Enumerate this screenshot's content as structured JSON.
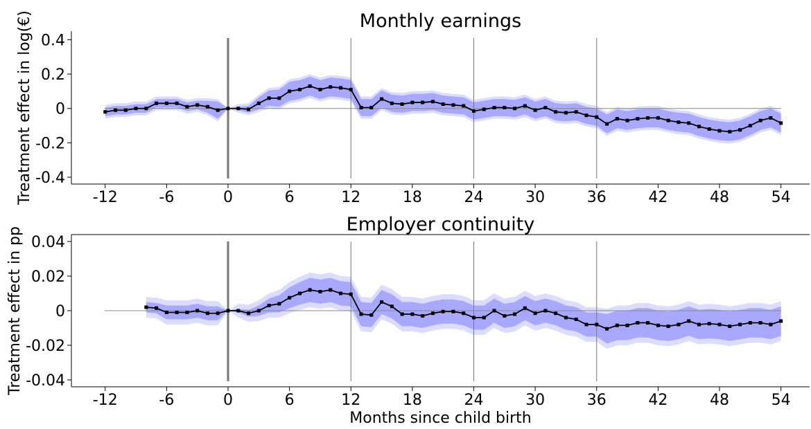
{
  "chart_data": [
    {
      "type": "line",
      "title": "Monthly earnings",
      "ylabel": "Treatment effect in log(€)",
      "x": [
        -12,
        -11,
        -10,
        -9,
        -8,
        -7,
        -6,
        -5,
        -4,
        -3,
        -2,
        -1,
        0,
        1,
        2,
        3,
        4,
        5,
        6,
        7,
        8,
        9,
        10,
        11,
        12,
        13,
        14,
        15,
        16,
        17,
        18,
        19,
        20,
        21,
        22,
        23,
        24,
        25,
        26,
        27,
        28,
        29,
        30,
        31,
        32,
        33,
        34,
        35,
        36,
        37,
        38,
        39,
        40,
        41,
        42,
        43,
        44,
        45,
        46,
        47,
        48,
        49,
        50,
        51,
        52,
        53,
        54
      ],
      "series": [
        {
          "color": "#000000",
          "band_colors": [
            "#dcdcff",
            "#a8a8ff"
          ],
          "values": [
            -0.02,
            -0.01,
            -0.01,
            0,
            0,
            0.03,
            0.03,
            0.03,
            0.01,
            0.02,
            0.01,
            -0.01,
            0,
            0,
            -0.005,
            0.03,
            0.06,
            0.06,
            0.1,
            0.11,
            0.13,
            0.11,
            0.125,
            0.12,
            0.11,
            0.005,
            0.005,
            0.055,
            0.03,
            0.025,
            0.035,
            0.035,
            0.04,
            0.025,
            0.02,
            0.015,
            -0.015,
            -0.005,
            0.005,
            0.005,
            0,
            0.015,
            -0.01,
            0.005,
            -0.02,
            -0.025,
            -0.02,
            -0.04,
            -0.05,
            -0.09,
            -0.06,
            -0.07,
            -0.06,
            -0.055,
            -0.055,
            -0.07,
            -0.08,
            -0.085,
            -0.105,
            -0.12,
            -0.13,
            -0.135,
            -0.125,
            -0.1,
            -0.07,
            -0.055,
            -0.085
          ],
          "ci_inner": [
            0.025,
            0.025,
            0.025,
            0.025,
            0.025,
            0.025,
            0.025,
            0.025,
            0.025,
            0.025,
            0.035,
            0.05,
            0,
            0.01,
            0.02,
            0.035,
            0.045,
            0.05,
            0.055,
            0.055,
            0.055,
            0.055,
            0.055,
            0.055,
            0.055,
            0.05,
            0.05,
            0.05,
            0.05,
            0.05,
            0.05,
            0.05,
            0.05,
            0.05,
            0.05,
            0.05,
            0.05,
            0.05,
            0.05,
            0.05,
            0.05,
            0.05,
            0.05,
            0.05,
            0.05,
            0.05,
            0.05,
            0.05,
            0.05,
            0.055,
            0.055,
            0.055,
            0.055,
            0.055,
            0.055,
            0.055,
            0.055,
            0.055,
            0.055,
            0.055,
            0.055,
            0.055,
            0.055,
            0.055,
            0.055,
            0.055,
            0.055
          ],
          "ci_outer": [
            0.04,
            0.04,
            0.04,
            0.04,
            0.04,
            0.04,
            0.04,
            0.04,
            0.04,
            0.04,
            0.05,
            0.065,
            0,
            0.025,
            0.035,
            0.05,
            0.06,
            0.065,
            0.07,
            0.07,
            0.07,
            0.07,
            0.07,
            0.07,
            0.07,
            0.065,
            0.065,
            0.065,
            0.065,
            0.065,
            0.065,
            0.065,
            0.065,
            0.065,
            0.065,
            0.065,
            0.065,
            0.065,
            0.065,
            0.065,
            0.065,
            0.065,
            0.065,
            0.065,
            0.065,
            0.065,
            0.065,
            0.065,
            0.065,
            0.07,
            0.07,
            0.07,
            0.07,
            0.07,
            0.07,
            0.07,
            0.07,
            0.07,
            0.07,
            0.07,
            0.07,
            0.07,
            0.07,
            0.07,
            0.07,
            0.07,
            0.07
          ]
        }
      ],
      "xlim": [
        -15.3,
        56.8
      ],
      "xticks": [
        -12,
        -6,
        0,
        6,
        12,
        18,
        24,
        30,
        36,
        42,
        48,
        54
      ],
      "ylim": [
        -0.44,
        0.45
      ],
      "yticks": [
        -0.4,
        -0.2,
        0,
        0.2,
        0.4
      ],
      "vlines": [
        0,
        12,
        24,
        36
      ],
      "hline": 0
    },
    {
      "type": "line",
      "title": "Employer continuity",
      "ylabel": "Treatment effect in pp",
      "xlabel": "Months since child birth",
      "x": [
        -8,
        -7,
        -6,
        -5,
        -4,
        -3,
        -2,
        -1,
        0,
        1,
        2,
        3,
        4,
        5,
        6,
        7,
        8,
        9,
        10,
        11,
        12,
        13,
        14,
        15,
        16,
        17,
        18,
        19,
        20,
        21,
        22,
        23,
        24,
        25,
        26,
        27,
        28,
        29,
        30,
        31,
        32,
        33,
        34,
        35,
        36,
        37,
        38,
        39,
        40,
        41,
        42,
        43,
        44,
        45,
        46,
        47,
        48,
        49,
        50,
        51,
        52,
        53,
        54
      ],
      "series": [
        {
          "color": "#000000",
          "band_colors": [
            "#dcdcff",
            "#a8a8ff"
          ],
          "values": [
            0.002,
            0.0015,
            -0.001,
            -0.001,
            -0.001,
            0,
            -0.0015,
            -0.0015,
            0,
            0,
            -0.0015,
            0,
            0.003,
            0.004,
            0.0075,
            0.01,
            0.012,
            0.011,
            0.012,
            0.01,
            0.0095,
            -0.002,
            -0.0025,
            0.005,
            0.0025,
            -0.002,
            -0.002,
            -0.003,
            -0.0015,
            -0.0005,
            -0.0005,
            -0.0015,
            -0.004,
            -0.004,
            0,
            -0.003,
            -0.002,
            0.0015,
            -0.0015,
            0,
            -0.0015,
            -0.004,
            -0.005,
            -0.008,
            -0.008,
            -0.0105,
            -0.0085,
            -0.0085,
            -0.007,
            -0.007,
            -0.0085,
            -0.009,
            -0.008,
            -0.006,
            -0.008,
            -0.0075,
            -0.008,
            -0.009,
            -0.008,
            -0.007,
            -0.007,
            -0.008,
            -0.006
          ],
          "ci_inner": [
            0.003,
            0.003,
            0.004,
            0.004,
            0.004,
            0.004,
            0.004,
            0.004,
            0,
            0.001,
            0.002,
            0.003,
            0.004,
            0.005,
            0.006,
            0.0065,
            0.007,
            0.007,
            0.007,
            0.007,
            0.007,
            0.007,
            0.007,
            0.007,
            0.007,
            0.007,
            0.007,
            0.007,
            0.007,
            0.007,
            0.007,
            0.007,
            0.007,
            0.007,
            0.007,
            0.007,
            0.007,
            0.007,
            0.007,
            0.007,
            0.007,
            0.007,
            0.007,
            0.007,
            0.007,
            0.0085,
            0.0085,
            0.0085,
            0.0085,
            0.0085,
            0.0085,
            0.0085,
            0.0085,
            0.0085,
            0.0085,
            0.0085,
            0.0085,
            0.0085,
            0.0085,
            0.0085,
            0.0085,
            0.0085,
            0.0085
          ],
          "ci_outer": [
            0.006,
            0.006,
            0.007,
            0.007,
            0.007,
            0.007,
            0.007,
            0.007,
            0,
            0.004,
            0.005,
            0.006,
            0.007,
            0.008,
            0.009,
            0.0095,
            0.01,
            0.01,
            0.01,
            0.01,
            0.01,
            0.01,
            0.01,
            0.01,
            0.01,
            0.01,
            0.01,
            0.01,
            0.01,
            0.01,
            0.01,
            0.01,
            0.01,
            0.01,
            0.01,
            0.01,
            0.01,
            0.01,
            0.01,
            0.01,
            0.01,
            0.01,
            0.01,
            0.01,
            0.01,
            0.0115,
            0.0115,
            0.0115,
            0.0115,
            0.0115,
            0.0115,
            0.0115,
            0.0115,
            0.0115,
            0.0115,
            0.0115,
            0.0115,
            0.0115,
            0.0115,
            0.0115,
            0.0115,
            0.0115,
            0.0115
          ]
        }
      ],
      "xlim": [
        -15.3,
        56.8
      ],
      "xticks": [
        -12,
        -6,
        0,
        6,
        12,
        18,
        24,
        30,
        36,
        42,
        48,
        54
      ],
      "ylim": [
        -0.044,
        0.044
      ],
      "yticks": [
        -0.04,
        -0.02,
        0,
        0.02,
        0.04
      ],
      "vlines": [
        0,
        12,
        24,
        36
      ],
      "hline": 0
    }
  ]
}
